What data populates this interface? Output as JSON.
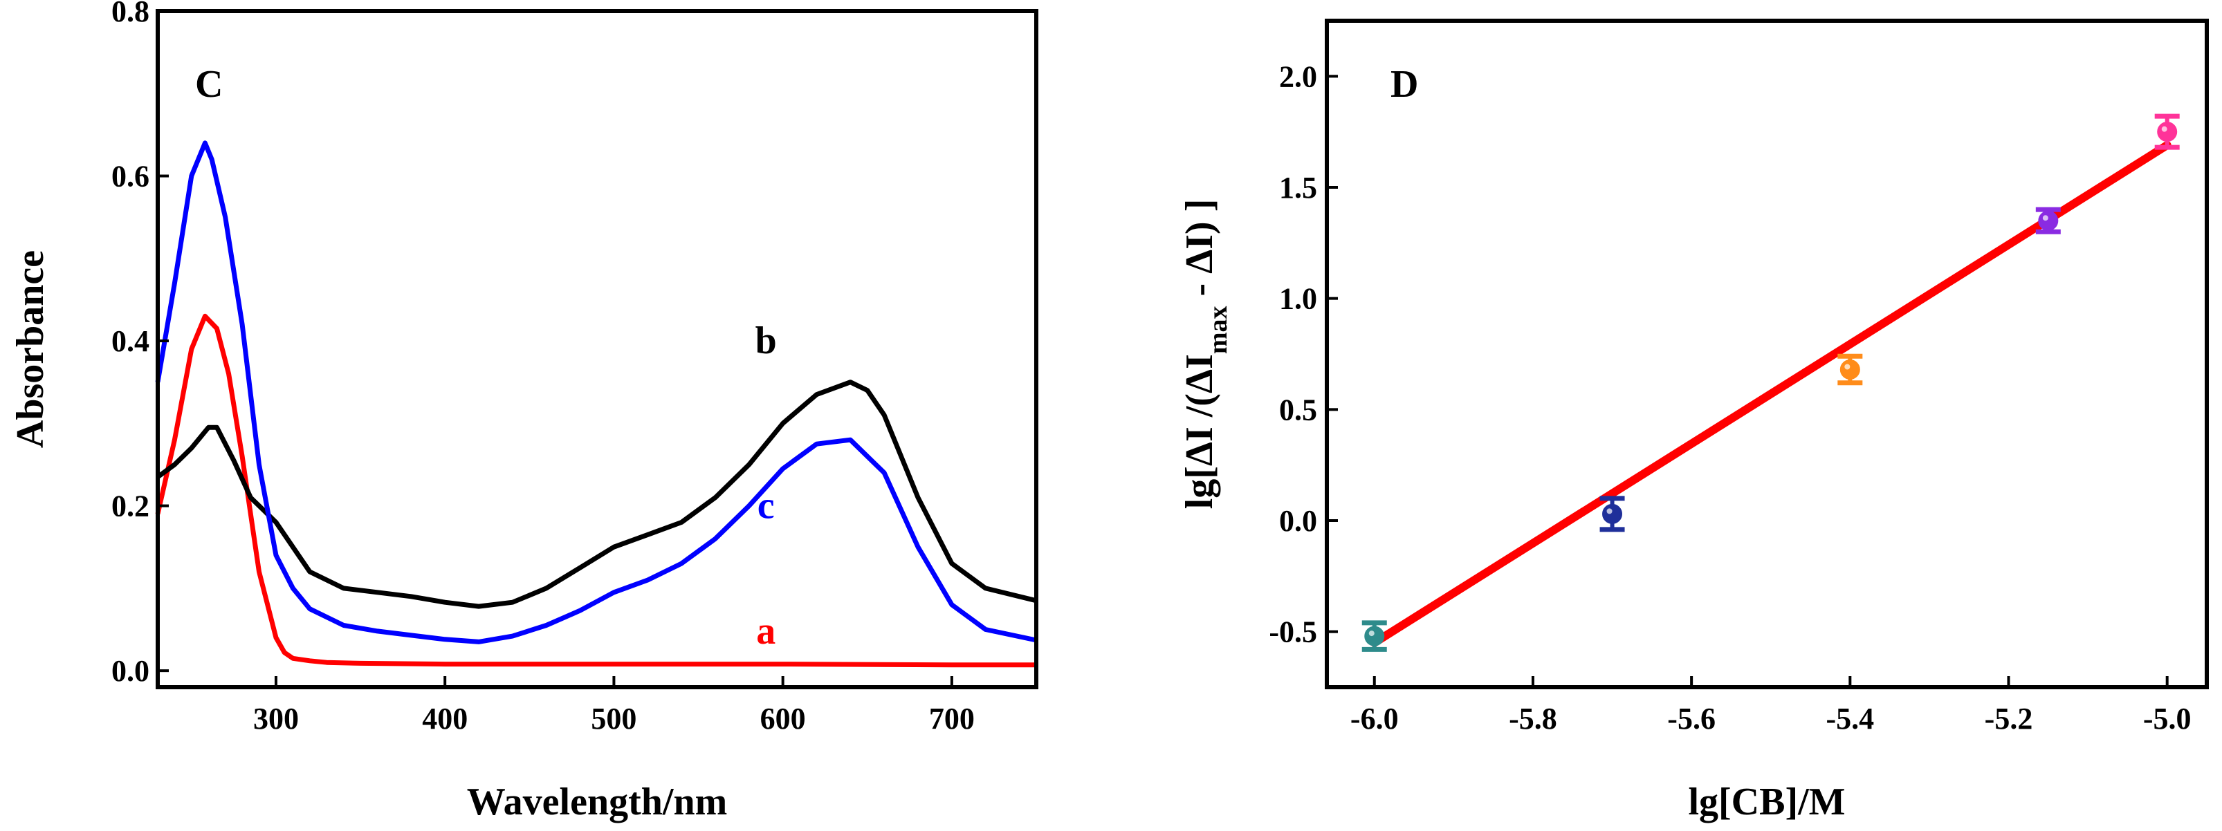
{
  "chart_data": [
    {
      "panel": "C",
      "type": "line",
      "xlabel": "Wavelength/nm",
      "ylabel": "Absorbance",
      "xlim": [
        230,
        750
      ],
      "ylim": [
        -0.02,
        0.8
      ],
      "xticks": [
        300,
        400,
        500,
        600,
        700
      ],
      "yticks": [
        0.0,
        0.2,
        0.4,
        0.6,
        0.8
      ],
      "ytick_labels": [
        "0.0",
        "0.2",
        "0.4",
        "0.6",
        "0.8"
      ],
      "series": [
        {
          "name": "a",
          "color": "#ff0000",
          "label_at": [
            590,
            0.033
          ],
          "x": [
            230,
            240,
            250,
            258,
            265,
            272,
            280,
            290,
            300,
            305,
            310,
            320,
            330,
            350,
            400,
            500,
            600,
            700,
            750
          ],
          "y": [
            0.19,
            0.28,
            0.39,
            0.43,
            0.415,
            0.36,
            0.26,
            0.12,
            0.04,
            0.022,
            0.015,
            0.012,
            0.01,
            0.009,
            0.008,
            0.008,
            0.008,
            0.007,
            0.007
          ]
        },
        {
          "name": "b",
          "color": "#000000",
          "label_at": [
            590,
            0.385
          ],
          "x": [
            230,
            240,
            250,
            260,
            265,
            275,
            285,
            300,
            320,
            340,
            360,
            380,
            400,
            420,
            440,
            460,
            480,
            500,
            520,
            540,
            560,
            580,
            600,
            620,
            640,
            650,
            660,
            680,
            700,
            720,
            750
          ],
          "y": [
            0.235,
            0.25,
            0.27,
            0.295,
            0.295,
            0.255,
            0.21,
            0.18,
            0.12,
            0.1,
            0.095,
            0.09,
            0.083,
            0.078,
            0.083,
            0.1,
            0.125,
            0.15,
            0.165,
            0.18,
            0.21,
            0.25,
            0.3,
            0.335,
            0.35,
            0.34,
            0.31,
            0.21,
            0.13,
            0.1,
            0.085
          ]
        },
        {
          "name": "c",
          "color": "#0000ff",
          "label_at": [
            590,
            0.185
          ],
          "x": [
            230,
            240,
            250,
            258,
            262,
            270,
            280,
            290,
            300,
            310,
            320,
            340,
            360,
            380,
            400,
            420,
            440,
            460,
            480,
            500,
            520,
            540,
            560,
            580,
            600,
            620,
            640,
            660,
            680,
            700,
            720,
            750
          ],
          "y": [
            0.35,
            0.47,
            0.6,
            0.64,
            0.62,
            0.55,
            0.42,
            0.25,
            0.14,
            0.1,
            0.075,
            0.055,
            0.048,
            0.043,
            0.038,
            0.035,
            0.042,
            0.055,
            0.073,
            0.095,
            0.11,
            0.13,
            0.16,
            0.2,
            0.245,
            0.275,
            0.28,
            0.24,
            0.15,
            0.08,
            0.05,
            0.037
          ]
        }
      ]
    },
    {
      "panel": "D",
      "type": "scatter",
      "xlabel": "lg[CB]/M",
      "ylabel_parts": [
        "lg[ΔI /(ΔI",
        "max",
        " - ΔI) ]"
      ],
      "xlim": [
        -6.06,
        -4.95
      ],
      "ylim": [
        -0.75,
        2.25
      ],
      "xticks": [
        -6.0,
        -5.8,
        -5.6,
        -5.4,
        -5.2,
        -5.0
      ],
      "xtick_labels": [
        "-6.0",
        "-5.8",
        "-5.6",
        "-5.4",
        "-5.2",
        "-5.0"
      ],
      "yticks": [
        -0.5,
        0.0,
        0.5,
        1.0,
        1.5,
        2.0
      ],
      "ytick_labels": [
        "-0.5",
        "0.0",
        "0.5",
        "1.0",
        "1.5",
        "2.0"
      ],
      "points": [
        {
          "x": -6.0,
          "y": -0.52,
          "err": 0.06,
          "color": "#2e8b8b"
        },
        {
          "x": -5.7,
          "y": 0.03,
          "err": 0.07,
          "color": "#1f2f9a"
        },
        {
          "x": -5.4,
          "y": 0.68,
          "err": 0.06,
          "color": "#ff8c1a"
        },
        {
          "x": -5.15,
          "y": 1.35,
          "err": 0.05,
          "color": "#8a2be2"
        },
        {
          "x": -5.0,
          "y": 1.75,
          "err": 0.07,
          "color": "#ff3399"
        }
      ],
      "fit": {
        "x": [
          -6.0,
          -5.0
        ],
        "y": [
          -0.55,
          1.69
        ],
        "color": "#ff0000"
      }
    }
  ]
}
